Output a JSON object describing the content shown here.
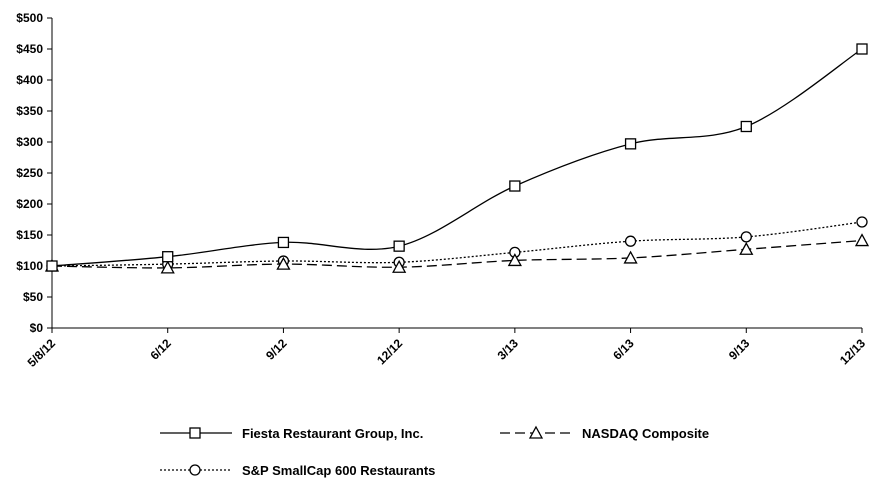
{
  "chart_data": {
    "type": "line",
    "title": "",
    "xlabel": "",
    "ylabel": "",
    "categories": [
      "5/8/12",
      "6/12",
      "9/12",
      "12/12",
      "3/13",
      "6/13",
      "9/13",
      "12/13"
    ],
    "ylim": [
      0,
      500
    ],
    "yticks": [
      0,
      50,
      100,
      150,
      200,
      250,
      300,
      350,
      400,
      450,
      500
    ],
    "ytick_labels": [
      "$0",
      "$50",
      "$100",
      "$150",
      "$200",
      "$250",
      "$300",
      "$350",
      "$400",
      "$450",
      "$500"
    ],
    "grid": false,
    "legend_position": "bottom",
    "series": [
      {
        "name": "Fiesta Restaurant Group, Inc.",
        "marker": "square",
        "line_style": "solid",
        "values": [
          100,
          115,
          138,
          132,
          229,
          297,
          325,
          450
        ]
      },
      {
        "name": "NASDAQ Composite",
        "marker": "triangle",
        "line_style": "dashed",
        "values": [
          100,
          97,
          103,
          98,
          109,
          113,
          127,
          141
        ]
      },
      {
        "name": "S&P SmallCap 600 Restaurants",
        "marker": "circle",
        "line_style": "dotted",
        "values": [
          100,
          103,
          108,
          106,
          122,
          140,
          147,
          171
        ]
      }
    ]
  }
}
